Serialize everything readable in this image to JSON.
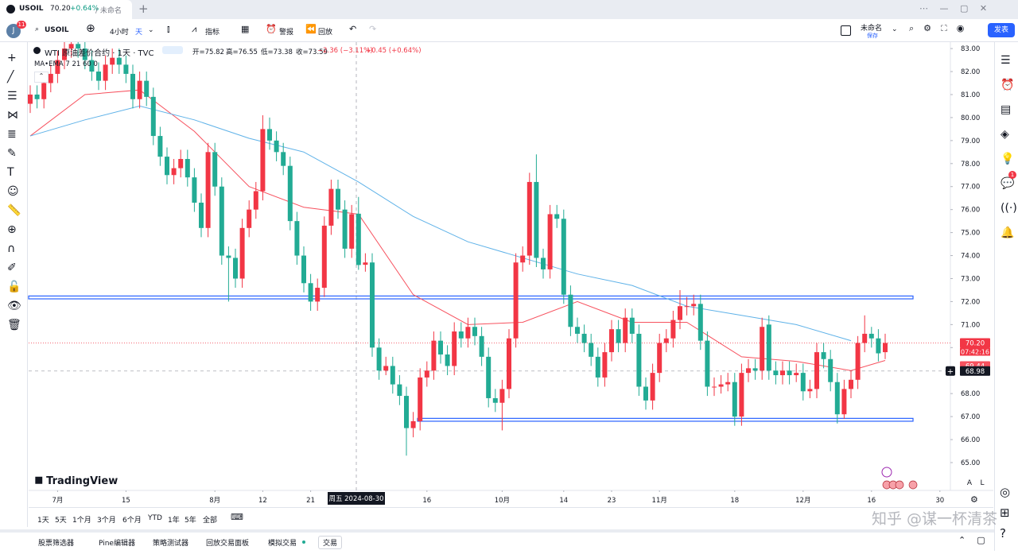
{
  "app": {
    "tab": {
      "symbol": "USOIL",
      "price": "70.20",
      "change": "+0.64%",
      "layout": "/ 未命名"
    },
    "toolbar": {
      "avatar": "J",
      "badge": "11",
      "symbol": "USOIL",
      "interval": "4小时",
      "timeframe": "天",
      "indicators": "指标",
      "alerts": "警报",
      "replay": "回放",
      "layout_name": "未命名",
      "save": "保存",
      "publish": "发表"
    },
    "range_buttons": [
      "1天",
      "5天",
      "1个月",
      "3个月",
      "6个月",
      "YTD",
      "1年",
      "5年",
      "全部"
    ],
    "bottom_tabs": [
      "股票筛选器",
      "Pine编辑器",
      "策略测试器",
      "回放交易面板",
      "模拟交易",
      "交易"
    ],
    "scale_buttons": [
      "A",
      "L"
    ],
    "logo": "TradingView",
    "sidebar_badge": "1",
    "watermark": "知乎 @谋一杯清茶"
  },
  "chart_data": {
    "type": "candlestick",
    "title": "WTI 原油差价合约 · 1天 · TVC",
    "legend": [
      "开=75.82",
      "高=76.55",
      "低=73.38",
      "收=73.59",
      "−2.36 (−3.11%)",
      "+0.45 (+0.64%)"
    ],
    "indicator": "MA•EMA 7 21 60 0",
    "up_color": "#f23645",
    "down_color": "#22ab94",
    "categories": [
      null,
      null,
      null,
      null,
      "7月",
      null,
      null,
      null,
      null,
      null,
      null,
      null,
      null,
      null,
      "15",
      null,
      null,
      null,
      null,
      null,
      null,
      null,
      null,
      null,
      null,
      null,
      null,
      "8月",
      null,
      null,
      null,
      null,
      null,
      null,
      "12",
      null,
      null,
      null,
      null,
      null,
      null,
      "21",
      null,
      null,
      null,
      null,
      null,
      null,
      null,
      null,
      null,
      null,
      null,
      null,
      null,
      null,
      null,
      null,
      "16",
      null,
      null,
      null,
      null,
      null,
      null,
      null,
      null,
      null,
      null,
      "10月",
      null,
      null,
      null,
      null,
      null,
      null,
      null,
      null,
      "14",
      null,
      null,
      null,
      null,
      null,
      null,
      "23",
      null,
      null,
      null,
      null,
      null,
      null,
      "11月",
      null,
      null,
      null,
      null,
      null,
      null,
      null,
      null,
      null,
      null,
      "18",
      null,
      null,
      null,
      null,
      null,
      null,
      null,
      null,
      null,
      "12月",
      null,
      null,
      null,
      null,
      null,
      null,
      null,
      null,
      null,
      "16",
      null,
      null,
      null,
      null,
      null,
      null,
      null,
      null,
      null,
      "30"
    ],
    "ohlc": [
      [
        80.6,
        81.4,
        80.2,
        81.0
      ],
      [
        81.0,
        81.4,
        80.4,
        80.8
      ],
      [
        80.8,
        81.9,
        80.4,
        81.5
      ],
      [
        81.5,
        82.3,
        81.1,
        81.9
      ],
      [
        81.9,
        82.9,
        81.5,
        82.5
      ],
      [
        82.5,
        83.4,
        82.1,
        83.0
      ],
      [
        83.0,
        83.6,
        82.6,
        83.2
      ],
      [
        83.2,
        83.6,
        82.6,
        83.0
      ],
      [
        83.0,
        83.4,
        82.1,
        82.5
      ],
      [
        82.5,
        82.9,
        81.6,
        82.0
      ],
      [
        82.0,
        82.4,
        81.2,
        81.6
      ],
      [
        81.6,
        82.7,
        81.2,
        82.3
      ],
      [
        82.3,
        83.0,
        81.9,
        82.6
      ],
      [
        82.6,
        83.0,
        81.9,
        82.3
      ],
      [
        82.3,
        82.7,
        81.5,
        81.9
      ],
      [
        81.9,
        82.3,
        80.4,
        80.8
      ],
      [
        80.8,
        82.0,
        80.4,
        81.6
      ],
      [
        81.6,
        82.0,
        80.5,
        80.9
      ],
      [
        80.9,
        81.3,
        78.8,
        79.2
      ],
      [
        79.2,
        79.6,
        77.9,
        78.3
      ],
      [
        78.3,
        78.7,
        77.1,
        77.5
      ],
      [
        77.5,
        78.2,
        77.1,
        77.8
      ],
      [
        77.8,
        78.6,
        77.4,
        78.2
      ],
      [
        78.2,
        78.6,
        77.0,
        77.4
      ],
      [
        77.4,
        77.8,
        75.9,
        76.3
      ],
      [
        76.3,
        76.7,
        74.8,
        75.2
      ],
      [
        75.2,
        78.9,
        74.8,
        78.5
      ],
      [
        78.5,
        78.9,
        76.6,
        77.0
      ],
      [
        77.0,
        77.4,
        73.6,
        74.0
      ],
      [
        74.0,
        74.4,
        72.0,
        73.9
      ],
      [
        73.9,
        74.3,
        72.6,
        73.0
      ],
      [
        73.0,
        75.6,
        72.6,
        75.2
      ],
      [
        75.2,
        76.4,
        74.8,
        76.0
      ],
      [
        76.0,
        77.2,
        75.6,
        76.8
      ],
      [
        76.8,
        80.1,
        76.4,
        79.5
      ],
      [
        79.5,
        80.0,
        78.6,
        79.0
      ],
      [
        79.0,
        79.4,
        78.1,
        78.5
      ],
      [
        78.5,
        78.9,
        77.5,
        77.9
      ],
      [
        77.9,
        78.3,
        75.1,
        75.5
      ],
      [
        75.5,
        75.9,
        73.6,
        74.0
      ],
      [
        74.0,
        74.4,
        72.4,
        72.8
      ],
      [
        72.8,
        73.2,
        71.6,
        72.0
      ],
      [
        72.0,
        73.0,
        71.6,
        72.6
      ],
      [
        72.6,
        75.7,
        72.2,
        75.3
      ],
      [
        75.3,
        77.3,
        74.9,
        76.9
      ],
      [
        76.9,
        77.3,
        75.6,
        76.0
      ],
      [
        76.0,
        76.4,
        73.9,
        74.3
      ],
      [
        74.3,
        76.2,
        73.9,
        75.8
      ],
      [
        75.82,
        76.55,
        73.38,
        73.59
      ],
      [
        73.6,
        74.1,
        73.3,
        73.7
      ],
      [
        73.7,
        74.1,
        69.6,
        70.0
      ],
      [
        70.0,
        70.4,
        68.6,
        69.0
      ],
      [
        69.0,
        69.6,
        68.8,
        69.2
      ],
      [
        69.2,
        69.6,
        68.0,
        68.4
      ],
      [
        68.4,
        68.8,
        67.5,
        67.9
      ],
      [
        67.9,
        68.3,
        65.3,
        66.5
      ],
      [
        66.5,
        67.2,
        66.1,
        66.8
      ],
      [
        66.8,
        69.1,
        66.4,
        68.7
      ],
      [
        68.7,
        69.4,
        68.3,
        69.0
      ],
      [
        69.0,
        70.7,
        68.6,
        70.3
      ],
      [
        70.3,
        70.7,
        69.3,
        69.7
      ],
      [
        69.7,
        70.1,
        68.8,
        69.2
      ],
      [
        69.2,
        71.1,
        68.8,
        70.7
      ],
      [
        70.7,
        71.1,
        70.0,
        70.4
      ],
      [
        70.4,
        71.3,
        70.0,
        70.9
      ],
      [
        70.9,
        71.3,
        70.1,
        70.5
      ],
      [
        70.5,
        70.9,
        69.2,
        69.6
      ],
      [
        69.6,
        70.0,
        67.4,
        67.8
      ],
      [
        67.8,
        68.2,
        67.2,
        67.6
      ],
      [
        67.6,
        68.6,
        66.4,
        68.2
      ],
      [
        68.2,
        70.8,
        67.8,
        70.4
      ],
      [
        70.4,
        74.1,
        70.0,
        73.7
      ],
      [
        73.7,
        74.4,
        73.3,
        74.0
      ],
      [
        74.0,
        77.6,
        73.6,
        77.2
      ],
      [
        77.2,
        78.4,
        73.5,
        73.9
      ],
      [
        73.9,
        74.3,
        73.0,
        73.4
      ],
      [
        73.4,
        76.2,
        73.0,
        75.8
      ],
      [
        75.8,
        76.2,
        75.2,
        75.6
      ],
      [
        75.6,
        76.0,
        71.9,
        72.3
      ],
      [
        72.3,
        72.7,
        70.5,
        70.9
      ],
      [
        70.9,
        71.3,
        70.2,
        70.6
      ],
      [
        70.6,
        71.0,
        69.8,
        70.2
      ],
      [
        70.2,
        70.6,
        69.2,
        69.6
      ],
      [
        69.6,
        70.0,
        68.3,
        68.7
      ],
      [
        68.7,
        70.2,
        68.3,
        69.8
      ],
      [
        69.8,
        71.2,
        69.4,
        70.8
      ],
      [
        70.8,
        71.2,
        69.8,
        70.2
      ],
      [
        70.2,
        71.7,
        69.8,
        71.3
      ],
      [
        71.3,
        71.7,
        70.2,
        70.6
      ],
      [
        70.6,
        71.0,
        67.9,
        68.3
      ],
      [
        68.3,
        68.7,
        67.3,
        67.7
      ],
      [
        67.7,
        69.3,
        67.3,
        68.9
      ],
      [
        68.9,
        70.6,
        68.5,
        70.2
      ],
      [
        70.2,
        70.8,
        69.8,
        70.4
      ],
      [
        70.4,
        71.6,
        70.0,
        71.2
      ],
      [
        71.2,
        72.5,
        70.8,
        71.8
      ],
      [
        71.8,
        72.2,
        71.4,
        71.8
      ],
      [
        71.8,
        72.3,
        71.4,
        71.9
      ],
      [
        71.9,
        72.3,
        69.9,
        70.3
      ],
      [
        70.3,
        70.7,
        67.9,
        68.3
      ],
      [
        68.3,
        68.7,
        67.9,
        68.3
      ],
      [
        68.3,
        68.8,
        68.0,
        68.4
      ],
      [
        68.4,
        68.9,
        68.1,
        68.5
      ],
      [
        68.5,
        68.9,
        66.6,
        67.0
      ],
      [
        67.0,
        69.3,
        66.6,
        68.9
      ],
      [
        68.9,
        69.5,
        68.5,
        69.1
      ],
      [
        69.1,
        69.5,
        68.6,
        69.0
      ],
      [
        69.0,
        71.3,
        68.6,
        70.9
      ],
      [
        71.0,
        71.4,
        68.6,
        69.0
      ],
      [
        69.0,
        69.4,
        68.4,
        68.8
      ],
      [
        68.8,
        69.4,
        68.4,
        69.0
      ],
      [
        69.0,
        69.4,
        68.4,
        68.8
      ],
      [
        68.8,
        69.3,
        68.5,
        68.9
      ],
      [
        68.9,
        69.3,
        67.7,
        68.1
      ],
      [
        68.1,
        68.6,
        67.8,
        68.2
      ],
      [
        68.2,
        70.2,
        67.8,
        69.8
      ],
      [
        69.8,
        70.2,
        69.1,
        69.5
      ],
      [
        69.5,
        69.9,
        68.1,
        68.5
      ],
      [
        68.5,
        68.9,
        66.7,
        67.1
      ],
      [
        67.1,
        68.6,
        66.9,
        68.2
      ],
      [
        68.2,
        69.0,
        67.8,
        68.6
      ],
      [
        68.6,
        70.5,
        68.2,
        70.2
      ],
      [
        70.2,
        71.4,
        69.8,
        70.6
      ],
      [
        70.6,
        70.9,
        70.0,
        70.4
      ],
      [
        70.4,
        70.8,
        69.4,
        69.75
      ],
      [
        69.8,
        70.6,
        69.5,
        70.2
      ],
      null,
      null,
      null,
      null,
      null,
      null,
      null,
      null
    ],
    "series": [
      {
        "color": "#f7525f",
        "x": [
          0,
          8,
          16,
          24,
          32,
          40,
          48,
          56,
          64,
          72,
          80,
          88,
          96,
          104,
          112,
          120,
          125
        ],
        "values": [
          79.2,
          81.0,
          81.2,
          79.4,
          77.0,
          76.1,
          75.8,
          72.3,
          71.0,
          71.1,
          72.0,
          71.1,
          71.1,
          69.6,
          69.4,
          69.0,
          69.44
        ]
      },
      {
        "color": "#5fb2e8",
        "x": [
          0,
          8,
          16,
          24,
          32,
          40,
          48,
          56,
          64,
          72,
          80,
          88,
          96,
          104,
          112,
          120
        ],
        "values": [
          79.2,
          79.9,
          80.5,
          79.9,
          79.1,
          78.5,
          77.2,
          75.7,
          74.6,
          73.9,
          73.2,
          72.7,
          71.8,
          71.4,
          71.0,
          70.3
        ]
      }
    ],
    "hlines": [
      {
        "value": 72.18,
        "color": "#2962ff"
      },
      {
        "value": 66.86,
        "color": "#2962ff"
      }
    ],
    "ylim": [
      63.79,
      83.28
    ],
    "yticks": [
      {
        "value": 83,
        "label": "83.00"
      },
      {
        "value": 82,
        "label": "82.00"
      },
      {
        "value": 81,
        "label": "81.00"
      },
      {
        "value": 80,
        "label": "80.00"
      },
      {
        "value": 79,
        "label": "79.00"
      },
      {
        "value": 78,
        "label": "78.00"
      },
      {
        "value": 77,
        "label": "77.00"
      },
      {
        "value": 76,
        "label": "76.00"
      },
      {
        "value": 75,
        "label": "75.00"
      },
      {
        "value": 74,
        "label": "74.00"
      },
      {
        "value": 73,
        "label": "73.00"
      },
      {
        "value": 72,
        "label": "72.00"
      },
      {
        "value": 71,
        "label": "71.00"
      },
      {
        "value": 70,
        "label": "70.00"
      },
      {
        "value": 69,
        "label": "69.00"
      },
      {
        "value": 68,
        "label": "68.00"
      },
      {
        "value": 67,
        "label": "67.00"
      },
      {
        "value": 66,
        "label": "66.00"
      },
      {
        "value": 65,
        "label": "65.00"
      }
    ],
    "last_price": {
      "value": 70.2,
      "label": "70.20",
      "countdown": "07:42:16"
    },
    "ema_last": {
      "value": 69.44,
      "label": "69.44"
    },
    "crosshair": {
      "value": 68.98,
      "label": "68.98",
      "date": "周五 2024-08-30"
    }
  }
}
